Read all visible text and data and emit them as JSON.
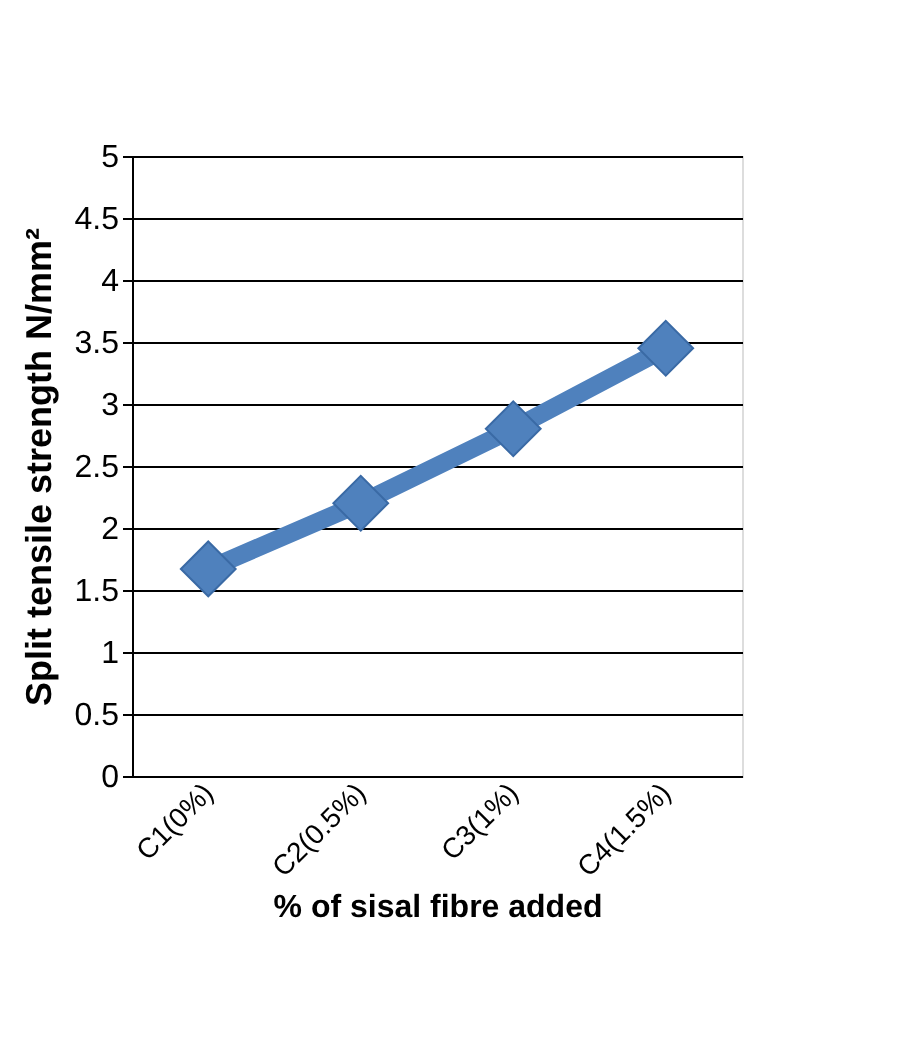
{
  "chart_data": {
    "type": "line",
    "xlabel": "% of sisal fibre added",
    "ylabel": "Split tensile  strength N/mm²",
    "categories": [
      "C1(0%)",
      "C2(0.5%)",
      "C3(1%)",
      "C4(1.5%)"
    ],
    "series": [
      {
        "color": "#4f81bd",
        "values": [
          1.67,
          2.2,
          2.8,
          3.45
        ]
      }
    ],
    "ylim": [
      0,
      5
    ],
    "yticks": [
      0,
      0.5,
      1,
      1.5,
      2,
      2.5,
      3,
      3.5,
      4,
      4.5,
      5
    ],
    "grid": "y",
    "marker": "diamond",
    "line_style": "solid"
  }
}
